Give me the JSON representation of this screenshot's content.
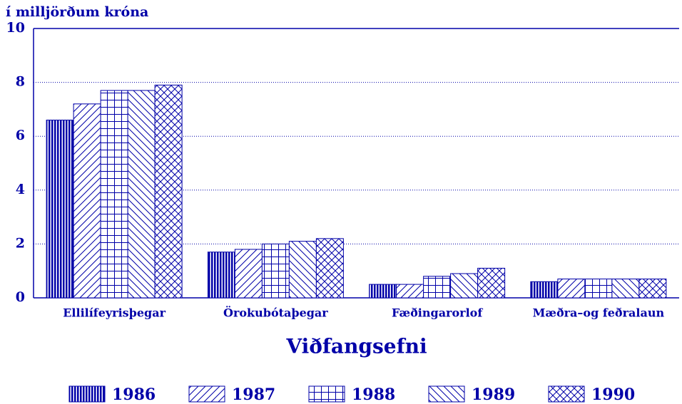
{
  "chart_data": {
    "type": "bar",
    "y_axis_label": "í milljörðum króna",
    "x_axis_label": "Viðfangsefni",
    "categories": [
      "Ellilífeyrisþegar",
      "Örokubótaþegar",
      "Fæðingarorlof",
      "Mæðra–og feðralaun"
    ],
    "series": [
      {
        "name": "1986",
        "color": "#0000a8",
        "pattern": "vertical",
        "values": [
          6.6,
          1.7,
          0.5,
          0.6
        ]
      },
      {
        "name": "1987",
        "color": "#0000a8",
        "pattern": "forward-diagonal",
        "values": [
          7.2,
          1.8,
          0.5,
          0.7
        ]
      },
      {
        "name": "1988",
        "color": "#0000a8",
        "pattern": "grid",
        "values": [
          7.7,
          2.0,
          0.8,
          0.7
        ]
      },
      {
        "name": "1989",
        "color": "#0000a8",
        "pattern": "back-diagonal",
        "values": [
          7.7,
          2.1,
          0.9,
          0.7
        ]
      },
      {
        "name": "1990",
        "color": "#0000a8",
        "pattern": "crosshatch",
        "values": [
          7.9,
          2.2,
          1.1,
          0.7
        ]
      }
    ],
    "ylim": [
      0,
      10
    ],
    "yticks": [
      0,
      2,
      4,
      6,
      8,
      10
    ],
    "grid": true,
    "legend": "bottom"
  }
}
